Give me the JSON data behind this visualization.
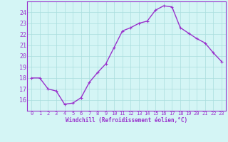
{
  "x": [
    0,
    1,
    2,
    3,
    4,
    5,
    6,
    7,
    8,
    9,
    10,
    11,
    12,
    13,
    14,
    15,
    16,
    17,
    18,
    19,
    20,
    21,
    22,
    23
  ],
  "y": [
    18.0,
    18.0,
    17.0,
    16.8,
    15.6,
    15.7,
    16.2,
    17.6,
    18.5,
    19.3,
    20.8,
    22.3,
    22.6,
    23.0,
    23.2,
    24.2,
    24.6,
    24.5,
    22.6,
    22.1,
    21.6,
    21.2,
    20.3,
    19.5
  ],
  "line_color": "#9932CC",
  "marker": "+",
  "marker_size": 3,
  "bg_color": "#d4f5f5",
  "grid_color": "#aadddd",
  "xlabel": "Windchill (Refroidissement éolien,°C)",
  "xlabel_color": "#9932CC",
  "tick_color": "#9932CC",
  "ylim": [
    15.0,
    25.0
  ],
  "xlim": [
    -0.5,
    23.5
  ],
  "yticks": [
    16,
    17,
    18,
    19,
    20,
    21,
    22,
    23,
    24
  ],
  "xticks": [
    0,
    1,
    2,
    3,
    4,
    5,
    6,
    7,
    8,
    9,
    10,
    11,
    12,
    13,
    14,
    15,
    16,
    17,
    18,
    19,
    20,
    21,
    22,
    23
  ],
  "xtick_labels": [
    "0",
    "1",
    "2",
    "3",
    "4",
    "5",
    "6",
    "7",
    "8",
    "9",
    "10",
    "11",
    "12",
    "13",
    "14",
    "15",
    "16",
    "17",
    "18",
    "19",
    "20",
    "21",
    "22",
    "23"
  ],
  "linewidth": 1.0,
  "spine_color": "#9932CC"
}
